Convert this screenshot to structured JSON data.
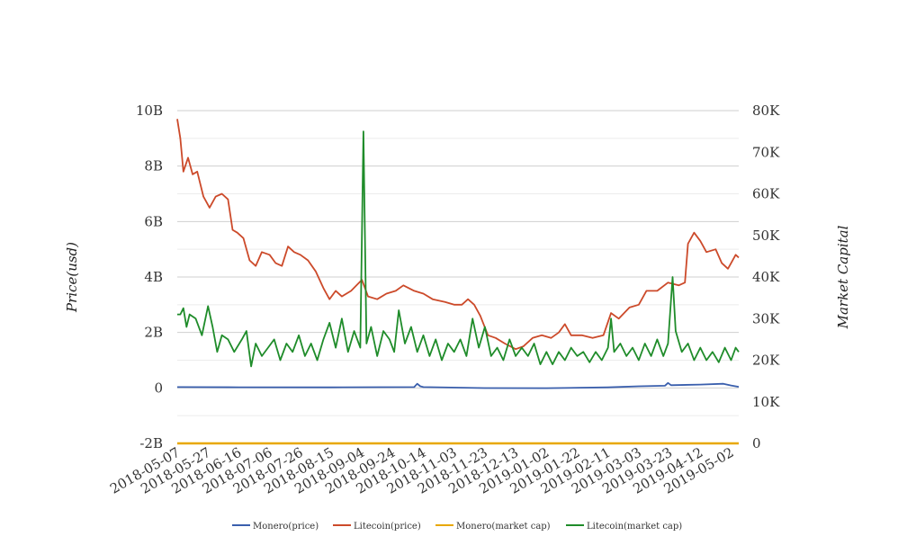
{
  "chart_data": {
    "type": "line",
    "title": "",
    "ylabel": "Price(usd)",
    "y2label": "Market Capital",
    "ylim": [
      -2000000000,
      10000000000
    ],
    "y_ticks": [
      "-2B",
      "0",
      "2B",
      "4B",
      "6B",
      "8B",
      "10B"
    ],
    "y2lim": [
      0,
      80000
    ],
    "y2_ticks": [
      "0",
      "10K",
      "20K",
      "30K",
      "40K",
      "50K",
      "60K",
      "70K",
      "80K"
    ],
    "x_ticks": [
      "2018-05-07",
      "2018-05-27",
      "2018-06-16",
      "2018-07-06",
      "2018-07-26",
      "2018-08-15",
      "2018-09-04",
      "2018-09-24",
      "2018-10-14",
      "2018-11-03",
      "2018-11-23",
      "2018-12-13",
      "2019-01-02",
      "2019-01-22",
      "2019-02-11",
      "2019-03-03",
      "2019-03-23",
      "2019-04-12",
      "2019-05-02"
    ],
    "x_range": [
      "2018-05-07",
      "2019-05-07"
    ],
    "grid": true,
    "legend_position": "bottom",
    "series": [
      {
        "name": "Monero(price)",
        "axis": "left",
        "color": "#3a5fad",
        "points": [
          [
            "2018-05-07",
            30000000
          ],
          [
            "2018-06-16",
            25000000
          ],
          [
            "2018-08-15",
            20000000
          ],
          [
            "2018-10-08",
            30000000
          ],
          [
            "2018-10-10",
            150000000
          ],
          [
            "2018-10-12",
            60000000
          ],
          [
            "2018-10-14",
            30000000
          ],
          [
            "2018-11-23",
            -5000000
          ],
          [
            "2019-01-02",
            -10000000
          ],
          [
            "2019-02-11",
            20000000
          ],
          [
            "2019-03-03",
            60000000
          ],
          [
            "2019-03-20",
            80000000
          ],
          [
            "2019-03-22",
            180000000
          ],
          [
            "2019-03-24",
            100000000
          ],
          [
            "2019-04-12",
            120000000
          ],
          [
            "2019-04-27",
            150000000
          ],
          [
            "2019-05-02",
            90000000
          ],
          [
            "2019-05-07",
            40000000
          ]
        ]
      },
      {
        "name": "Litecoin(price)",
        "axis": "left",
        "color": "#cc4a2a",
        "points": [
          [
            "2018-05-07",
            9700000000
          ],
          [
            "2018-05-09",
            9000000000
          ],
          [
            "2018-05-11",
            7800000000
          ],
          [
            "2018-05-14",
            8300000000
          ],
          [
            "2018-05-17",
            7700000000
          ],
          [
            "2018-05-20",
            7800000000
          ],
          [
            "2018-05-24",
            6900000000
          ],
          [
            "2018-05-28",
            6500000000
          ],
          [
            "2018-06-01",
            6900000000
          ],
          [
            "2018-06-05",
            7000000000
          ],
          [
            "2018-06-09",
            6800000000
          ],
          [
            "2018-06-12",
            5700000000
          ],
          [
            "2018-06-15",
            5600000000
          ],
          [
            "2018-06-19",
            5400000000
          ],
          [
            "2018-06-23",
            4600000000
          ],
          [
            "2018-06-27",
            4400000000
          ],
          [
            "2018-07-01",
            4900000000
          ],
          [
            "2018-07-06",
            4800000000
          ],
          [
            "2018-07-10",
            4500000000
          ],
          [
            "2018-07-14",
            4400000000
          ],
          [
            "2018-07-18",
            5100000000
          ],
          [
            "2018-07-22",
            4900000000
          ],
          [
            "2018-07-26",
            4800000000
          ],
          [
            "2018-07-31",
            4600000000
          ],
          [
            "2018-08-05",
            4200000000
          ],
          [
            "2018-08-10",
            3600000000
          ],
          [
            "2018-08-14",
            3200000000
          ],
          [
            "2018-08-18",
            3500000000
          ],
          [
            "2018-08-22",
            3300000000
          ],
          [
            "2018-08-28",
            3500000000
          ],
          [
            "2018-09-04",
            3900000000
          ],
          [
            "2018-09-08",
            3300000000
          ],
          [
            "2018-09-14",
            3200000000
          ],
          [
            "2018-09-20",
            3400000000
          ],
          [
            "2018-09-26",
            3500000000
          ],
          [
            "2018-10-01",
            3700000000
          ],
          [
            "2018-10-08",
            3500000000
          ],
          [
            "2018-10-14",
            3400000000
          ],
          [
            "2018-10-20",
            3200000000
          ],
          [
            "2018-10-28",
            3100000000
          ],
          [
            "2018-11-03",
            3000000000
          ],
          [
            "2018-11-08",
            3000000000
          ],
          [
            "2018-11-12",
            3200000000
          ],
          [
            "2018-11-16",
            3000000000
          ],
          [
            "2018-11-20",
            2600000000
          ],
          [
            "2018-11-25",
            1900000000
          ],
          [
            "2018-11-30",
            1800000000
          ],
          [
            "2018-12-06",
            1600000000
          ],
          [
            "2018-12-13",
            1400000000
          ],
          [
            "2018-12-18",
            1500000000
          ],
          [
            "2018-12-24",
            1800000000
          ],
          [
            "2018-12-30",
            1900000000
          ],
          [
            "2019-01-05",
            1800000000
          ],
          [
            "2019-01-10",
            2000000000
          ],
          [
            "2019-01-14",
            2300000000
          ],
          [
            "2019-01-18",
            1900000000
          ],
          [
            "2019-01-25",
            1900000000
          ],
          [
            "2019-02-01",
            1800000000
          ],
          [
            "2019-02-08",
            1900000000
          ],
          [
            "2019-02-13",
            2700000000
          ],
          [
            "2019-02-18",
            2500000000
          ],
          [
            "2019-02-25",
            2900000000
          ],
          [
            "2019-03-03",
            3000000000
          ],
          [
            "2019-03-08",
            3500000000
          ],
          [
            "2019-03-15",
            3500000000
          ],
          [
            "2019-03-22",
            3800000000
          ],
          [
            "2019-03-29",
            3700000000
          ],
          [
            "2019-04-02",
            3800000000
          ],
          [
            "2019-04-04",
            5200000000
          ],
          [
            "2019-04-08",
            5600000000
          ],
          [
            "2019-04-12",
            5300000000
          ],
          [
            "2019-04-16",
            4900000000
          ],
          [
            "2019-04-22",
            5000000000
          ],
          [
            "2019-04-26",
            4500000000
          ],
          [
            "2019-04-30",
            4300000000
          ],
          [
            "2019-05-02",
            4500000000
          ],
          [
            "2019-05-05",
            4800000000
          ],
          [
            "2019-05-07",
            4700000000
          ]
        ]
      },
      {
        "name": "Monero(market cap)",
        "axis": "right",
        "color": "#e8a800",
        "points": [
          [
            "2018-05-07",
            0
          ],
          [
            "2019-05-07",
            0
          ]
        ]
      },
      {
        "name": "Litecoin(market cap)",
        "axis": "right",
        "color": "#1f8c2a",
        "points": [
          [
            "2018-05-07",
            31000
          ],
          [
            "2018-05-09",
            31000
          ],
          [
            "2018-05-11",
            32500
          ],
          [
            "2018-05-13",
            28000
          ],
          [
            "2018-05-15",
            31000
          ],
          [
            "2018-05-19",
            30000
          ],
          [
            "2018-05-23",
            26000
          ],
          [
            "2018-05-27",
            33000
          ],
          [
            "2018-05-30",
            28000
          ],
          [
            "2018-06-02",
            22000
          ],
          [
            "2018-06-05",
            26000
          ],
          [
            "2018-06-09",
            25000
          ],
          [
            "2018-06-13",
            22000
          ],
          [
            "2018-06-18",
            25000
          ],
          [
            "2018-06-21",
            27000
          ],
          [
            "2018-06-24",
            18500
          ],
          [
            "2018-06-27",
            24000
          ],
          [
            "2018-07-01",
            21000
          ],
          [
            "2018-07-05",
            23000
          ],
          [
            "2018-07-09",
            25000
          ],
          [
            "2018-07-13",
            20000
          ],
          [
            "2018-07-17",
            24000
          ],
          [
            "2018-07-21",
            22000
          ],
          [
            "2018-07-25",
            26000
          ],
          [
            "2018-07-29",
            21000
          ],
          [
            "2018-08-02",
            24000
          ],
          [
            "2018-08-06",
            20000
          ],
          [
            "2018-08-10",
            25000
          ],
          [
            "2018-08-14",
            29000
          ],
          [
            "2018-08-18",
            23000
          ],
          [
            "2018-08-22",
            30000
          ],
          [
            "2018-08-26",
            22000
          ],
          [
            "2018-08-30",
            27000
          ],
          [
            "2018-09-03",
            23000
          ],
          [
            "2018-09-05",
            75000
          ],
          [
            "2018-09-07",
            24000
          ],
          [
            "2018-09-10",
            28000
          ],
          [
            "2018-09-14",
            21000
          ],
          [
            "2018-09-18",
            27000
          ],
          [
            "2018-09-22",
            25000
          ],
          [
            "2018-09-25",
            22000
          ],
          [
            "2018-09-28",
            32000
          ],
          [
            "2018-10-02",
            24000
          ],
          [
            "2018-10-06",
            28000
          ],
          [
            "2018-10-10",
            22000
          ],
          [
            "2018-10-14",
            26000
          ],
          [
            "2018-10-18",
            21000
          ],
          [
            "2018-10-22",
            25000
          ],
          [
            "2018-10-26",
            20000
          ],
          [
            "2018-10-30",
            24000
          ],
          [
            "2018-11-03",
            22000
          ],
          [
            "2018-11-07",
            25000
          ],
          [
            "2018-11-11",
            21000
          ],
          [
            "2018-11-15",
            30000
          ],
          [
            "2018-11-19",
            23000
          ],
          [
            "2018-11-23",
            28000
          ],
          [
            "2018-11-27",
            21000
          ],
          [
            "2018-12-01",
            23000
          ],
          [
            "2018-12-05",
            20000
          ],
          [
            "2018-12-09",
            25000
          ],
          [
            "2018-12-13",
            21000
          ],
          [
            "2018-12-17",
            23000
          ],
          [
            "2018-12-21",
            21000
          ],
          [
            "2018-12-25",
            24000
          ],
          [
            "2018-12-29",
            19000
          ],
          [
            "2019-01-02",
            22000
          ],
          [
            "2019-01-06",
            19000
          ],
          [
            "2019-01-10",
            22000
          ],
          [
            "2019-01-14",
            20000
          ],
          [
            "2019-01-18",
            23000
          ],
          [
            "2019-01-22",
            21000
          ],
          [
            "2019-01-26",
            22000
          ],
          [
            "2019-01-30",
            19500
          ],
          [
            "2019-02-03",
            22000
          ],
          [
            "2019-02-07",
            20000
          ],
          [
            "2019-02-11",
            23000
          ],
          [
            "2019-02-13",
            30000
          ],
          [
            "2019-02-15",
            22000
          ],
          [
            "2019-02-19",
            24000
          ],
          [
            "2019-02-23",
            21000
          ],
          [
            "2019-02-27",
            23000
          ],
          [
            "2019-03-03",
            20000
          ],
          [
            "2019-03-07",
            24000
          ],
          [
            "2019-03-11",
            21000
          ],
          [
            "2019-03-15",
            25000
          ],
          [
            "2019-03-19",
            21000
          ],
          [
            "2019-03-22",
            24000
          ],
          [
            "2019-03-25",
            40000
          ],
          [
            "2019-03-27",
            27000
          ],
          [
            "2019-03-31",
            22000
          ],
          [
            "2019-04-04",
            24000
          ],
          [
            "2019-04-08",
            20000
          ],
          [
            "2019-04-12",
            23000
          ],
          [
            "2019-04-16",
            20000
          ],
          [
            "2019-04-20",
            22000
          ],
          [
            "2019-04-24",
            19500
          ],
          [
            "2019-04-28",
            23000
          ],
          [
            "2019-05-02",
            20000
          ],
          [
            "2019-05-05",
            23000
          ],
          [
            "2019-05-07",
            22000
          ]
        ]
      }
    ]
  }
}
